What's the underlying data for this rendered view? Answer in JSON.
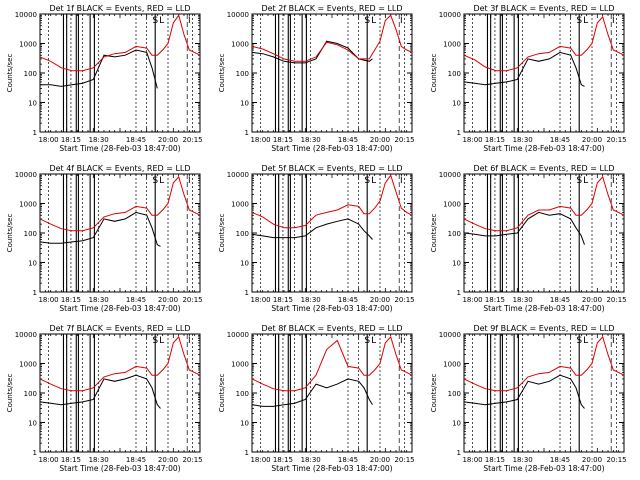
{
  "figure": {
    "ylabel": "Counts/sec",
    "xlabel": "Start Time (28-Feb-03 18:47:00)",
    "xtick_labels": [
      "18:00",
      "18:15",
      "18:30",
      "18:45",
      "20:00",
      "20:15"
    ],
    "ytick_labels": [
      "1",
      "10",
      "100",
      "1000",
      "10000"
    ],
    "markers": [
      "S",
      "L",
      "I"
    ],
    "colors": {
      "events": "#000000",
      "lld": "#e00000",
      "axes": "#000000",
      "background": "#ffffff"
    }
  },
  "chart_data": [
    {
      "type": "line",
      "title": "Det 1f BLACK = Events, RED = LLD",
      "xlim": [
        0,
        150
      ],
      "ylim": [
        1,
        10000
      ],
      "yscale": "log",
      "series": [
        {
          "name": "BLACK = Events",
          "x": [
            0,
            10,
            20,
            30,
            40,
            50,
            60,
            70,
            80,
            90,
            100,
            105,
            110,
            113,
            120,
            125,
            130,
            135,
            140,
            145,
            150
          ],
          "values": [
            40,
            40,
            35,
            40,
            45,
            60,
            400,
            350,
            400,
            600,
            500,
            150,
            30,
            null,
            null,
            null,
            null,
            null,
            null,
            null,
            null
          ]
        },
        {
          "name": "RED = LLD",
          "x": [
            0,
            10,
            20,
            30,
            40,
            50,
            60,
            70,
            80,
            90,
            100,
            105,
            110,
            115,
            120,
            125,
            130,
            135,
            140,
            145,
            150
          ],
          "values": [
            350,
            250,
            150,
            120,
            120,
            150,
            350,
            450,
            500,
            800,
            700,
            400,
            400,
            600,
            1000,
            5000,
            9000,
            2000,
            600,
            500,
            400
          ]
        }
      ]
    },
    {
      "type": "line",
      "title": "Det 2f BLACK = Events, RED = LLD",
      "xlim": [
        0,
        150
      ],
      "ylim": [
        1,
        10000
      ],
      "yscale": "log",
      "series": [
        {
          "name": "BLACK = Events",
          "x": [
            0,
            10,
            20,
            30,
            40,
            50,
            60,
            70,
            80,
            90,
            100,
            110,
            113
          ],
          "values": [
            500,
            450,
            350,
            250,
            220,
            220,
            300,
            1200,
            1000,
            700,
            300,
            250,
            300
          ]
        },
        {
          "name": "RED = LLD",
          "x": [
            0,
            10,
            20,
            30,
            40,
            50,
            60,
            70,
            80,
            90,
            100,
            110,
            115,
            120,
            125,
            130,
            135,
            140,
            145,
            150
          ],
          "values": [
            800,
            650,
            450,
            300,
            250,
            250,
            350,
            1100,
            900,
            600,
            300,
            300,
            600,
            1200,
            6000,
            9000,
            3000,
            800,
            600,
            500
          ]
        }
      ]
    },
    {
      "type": "line",
      "title": "Det 3f BLACK = Events, RED = LLD",
      "xlim": [
        0,
        150
      ],
      "ylim": [
        1,
        10000
      ],
      "yscale": "log",
      "series": [
        {
          "name": "BLACK = Events",
          "x": [
            0,
            10,
            20,
            30,
            40,
            50,
            60,
            70,
            80,
            90,
            100,
            105,
            110,
            113
          ],
          "values": [
            50,
            45,
            40,
            45,
            50,
            60,
            300,
            250,
            300,
            500,
            400,
            150,
            40,
            35
          ]
        },
        {
          "name": "RED = LLD",
          "x": [
            0,
            10,
            20,
            30,
            40,
            50,
            60,
            70,
            80,
            90,
            100,
            105,
            110,
            115,
            120,
            125,
            130,
            135,
            140,
            145,
            150
          ],
          "values": [
            400,
            280,
            160,
            120,
            120,
            150,
            350,
            450,
            500,
            800,
            700,
            400,
            400,
            600,
            1000,
            5000,
            8000,
            2000,
            600,
            500,
            400
          ]
        }
      ]
    },
    {
      "type": "line",
      "title": "Det 4f BLACK = Events, RED = LLD",
      "xlim": [
        0,
        150
      ],
      "ylim": [
        1,
        10000
      ],
      "yscale": "log",
      "series": [
        {
          "name": "BLACK = Events",
          "x": [
            0,
            10,
            20,
            30,
            40,
            50,
            60,
            70,
            80,
            90,
            100,
            105,
            110,
            113
          ],
          "values": [
            50,
            45,
            45,
            50,
            55,
            70,
            300,
            250,
            300,
            500,
            400,
            150,
            40,
            35
          ]
        },
        {
          "name": "RED = LLD",
          "x": [
            0,
            10,
            20,
            30,
            40,
            50,
            60,
            70,
            80,
            90,
            100,
            105,
            110,
            115,
            120,
            125,
            130,
            135,
            140,
            145,
            150
          ],
          "values": [
            300,
            200,
            140,
            120,
            120,
            150,
            350,
            450,
            500,
            800,
            700,
            400,
            400,
            600,
            1000,
            5000,
            8000,
            2000,
            600,
            500,
            400
          ]
        }
      ]
    },
    {
      "type": "line",
      "title": "Det 5f BLACK = Events, RED = LLD",
      "xlim": [
        0,
        150
      ],
      "ylim": [
        1,
        10000
      ],
      "yscale": "log",
      "series": [
        {
          "name": "BLACK = Events",
          "x": [
            0,
            10,
            20,
            30,
            40,
            50,
            60,
            70,
            80,
            90,
            100,
            105,
            110,
            113
          ],
          "values": [
            90,
            80,
            70,
            70,
            70,
            80,
            150,
            200,
            250,
            300,
            200,
            120,
            80,
            60
          ]
        },
        {
          "name": "RED = LLD",
          "x": [
            0,
            10,
            20,
            30,
            40,
            50,
            60,
            70,
            80,
            90,
            100,
            105,
            110,
            115,
            120,
            125,
            130,
            135,
            140,
            145,
            150
          ],
          "values": [
            500,
            350,
            200,
            150,
            150,
            180,
            400,
            500,
            600,
            900,
            800,
            450,
            450,
            700,
            1200,
            5000,
            9000,
            2500,
            700,
            500,
            400
          ]
        }
      ]
    },
    {
      "type": "line",
      "title": "Det 6f BLACK = Events, RED = LLD",
      "xlim": [
        0,
        150
      ],
      "ylim": [
        1,
        10000
      ],
      "yscale": "log",
      "series": [
        {
          "name": "BLACK = Events",
          "x": [
            0,
            10,
            20,
            30,
            40,
            50,
            60,
            70,
            80,
            90,
            100,
            105,
            110,
            113
          ],
          "values": [
            100,
            90,
            80,
            80,
            90,
            100,
            300,
            500,
            400,
            450,
            300,
            150,
            80,
            40
          ]
        },
        {
          "name": "RED = LLD",
          "x": [
            0,
            10,
            20,
            30,
            40,
            50,
            60,
            70,
            80,
            90,
            100,
            105,
            110,
            115,
            120,
            125,
            130,
            135,
            140,
            145,
            150
          ],
          "values": [
            300,
            200,
            140,
            120,
            120,
            150,
            400,
            600,
            600,
            800,
            700,
            400,
            400,
            600,
            1000,
            5000,
            8000,
            2000,
            600,
            500,
            400
          ]
        }
      ]
    },
    {
      "type": "line",
      "title": "Det 7f BLACK = Events, RED = LLD",
      "xlim": [
        0,
        150
      ],
      "ylim": [
        1,
        10000
      ],
      "yscale": "log",
      "series": [
        {
          "name": "BLACK = Events",
          "x": [
            0,
            10,
            20,
            30,
            40,
            50,
            60,
            70,
            80,
            90,
            100,
            105,
            110,
            113
          ],
          "values": [
            50,
            45,
            40,
            45,
            50,
            60,
            300,
            250,
            300,
            400,
            300,
            150,
            40,
            30
          ]
        },
        {
          "name": "RED = LLD",
          "x": [
            0,
            10,
            20,
            30,
            40,
            50,
            60,
            70,
            80,
            90,
            100,
            105,
            110,
            115,
            120,
            125,
            130,
            135,
            140,
            145,
            150
          ],
          "values": [
            300,
            200,
            140,
            120,
            120,
            150,
            350,
            450,
            500,
            800,
            700,
            400,
            400,
            600,
            1000,
            5000,
            8000,
            2000,
            600,
            500,
            400
          ]
        }
      ]
    },
    {
      "type": "line",
      "title": "Det 8f BLACK = Events, RED = LLD",
      "xlim": [
        0,
        150
      ],
      "ylim": [
        1,
        10000
      ],
      "yscale": "log",
      "series": [
        {
          "name": "BLACK = Events",
          "x": [
            0,
            10,
            20,
            30,
            40,
            50,
            60,
            70,
            80,
            90,
            100,
            105,
            110,
            113
          ],
          "values": [
            40,
            35,
            35,
            40,
            45,
            60,
            200,
            150,
            200,
            300,
            250,
            150,
            60,
            40
          ]
        },
        {
          "name": "RED = LLD",
          "x": [
            0,
            10,
            20,
            30,
            40,
            50,
            60,
            70,
            80,
            90,
            100,
            105,
            110,
            115,
            120,
            125,
            130,
            135,
            140,
            145,
            150
          ],
          "values": [
            300,
            200,
            140,
            120,
            120,
            150,
            400,
            3000,
            6000,
            800,
            700,
            400,
            400,
            600,
            1000,
            5000,
            8000,
            2000,
            600,
            500,
            400
          ]
        }
      ]
    },
    {
      "type": "line",
      "title": "Det 9f BLACK = Events, RED = LLD",
      "xlim": [
        0,
        150
      ],
      "ylim": [
        1,
        10000
      ],
      "yscale": "log",
      "series": [
        {
          "name": "BLACK = Events",
          "x": [
            0,
            10,
            20,
            30,
            40,
            50,
            60,
            70,
            80,
            90,
            100,
            105,
            110,
            113
          ],
          "values": [
            50,
            45,
            40,
            45,
            50,
            60,
            250,
            200,
            250,
            400,
            300,
            150,
            40,
            30
          ]
        },
        {
          "name": "RED = LLD",
          "x": [
            0,
            10,
            20,
            30,
            40,
            50,
            60,
            70,
            80,
            90,
            100,
            105,
            110,
            115,
            120,
            125,
            130,
            135,
            140,
            145,
            150
          ],
          "values": [
            300,
            200,
            140,
            120,
            120,
            150,
            350,
            450,
            500,
            800,
            700,
            400,
            400,
            600,
            1000,
            5000,
            8000,
            2000,
            600,
            500,
            400
          ]
        }
      ]
    }
  ]
}
